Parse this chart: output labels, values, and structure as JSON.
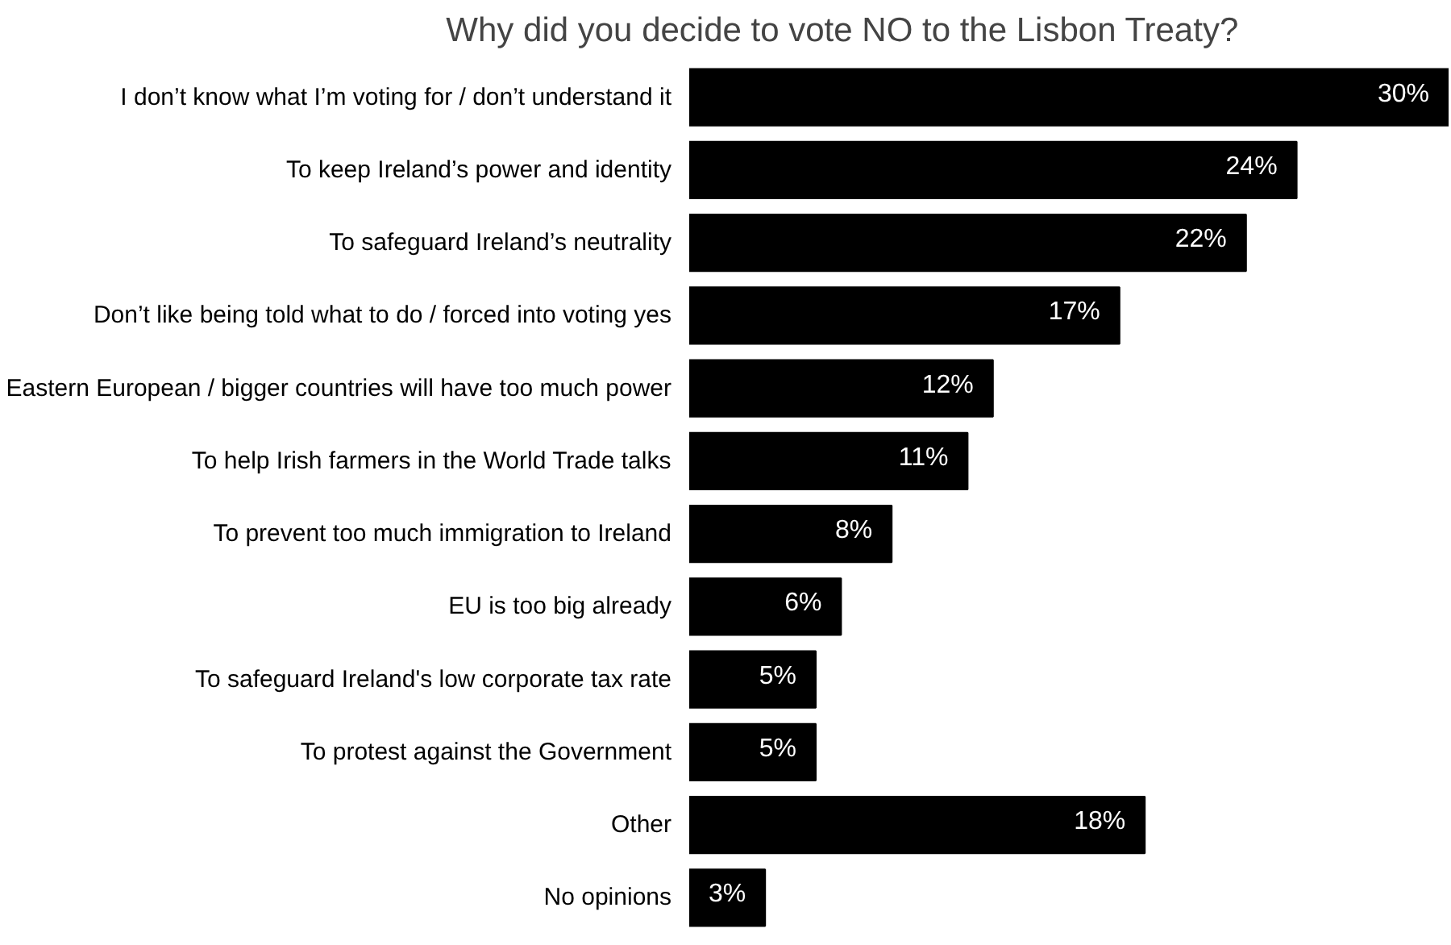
{
  "chart_data": {
    "type": "bar",
    "orientation": "horizontal",
    "title": "Why did you decide to vote NO to the Lisbon Treaty?",
    "categories": [
      "I don’t know what I’m voting for / don’t understand it",
      "To keep Ireland’s power and identity",
      "To safeguard Ireland’s neutrality",
      "Don’t like being told what to do / forced into voting yes",
      "Eastern European / bigger countries will have too much power",
      "To help Irish farmers in the World Trade talks",
      "To prevent too much immigration to Ireland",
      "EU is too big already",
      "To safeguard Ireland's low corporate tax rate",
      "To protest against the Government",
      "Other",
      "No opinions"
    ],
    "values": [
      30,
      24,
      22,
      17,
      12,
      11,
      8,
      6,
      5,
      5,
      18,
      3
    ],
    "value_labels": [
      "30%",
      "24%",
      "22%",
      "17%",
      "12%",
      "11%",
      "8%",
      "6%",
      "5%",
      "5%",
      "18%",
      "3%"
    ],
    "color": "#000000"
  }
}
